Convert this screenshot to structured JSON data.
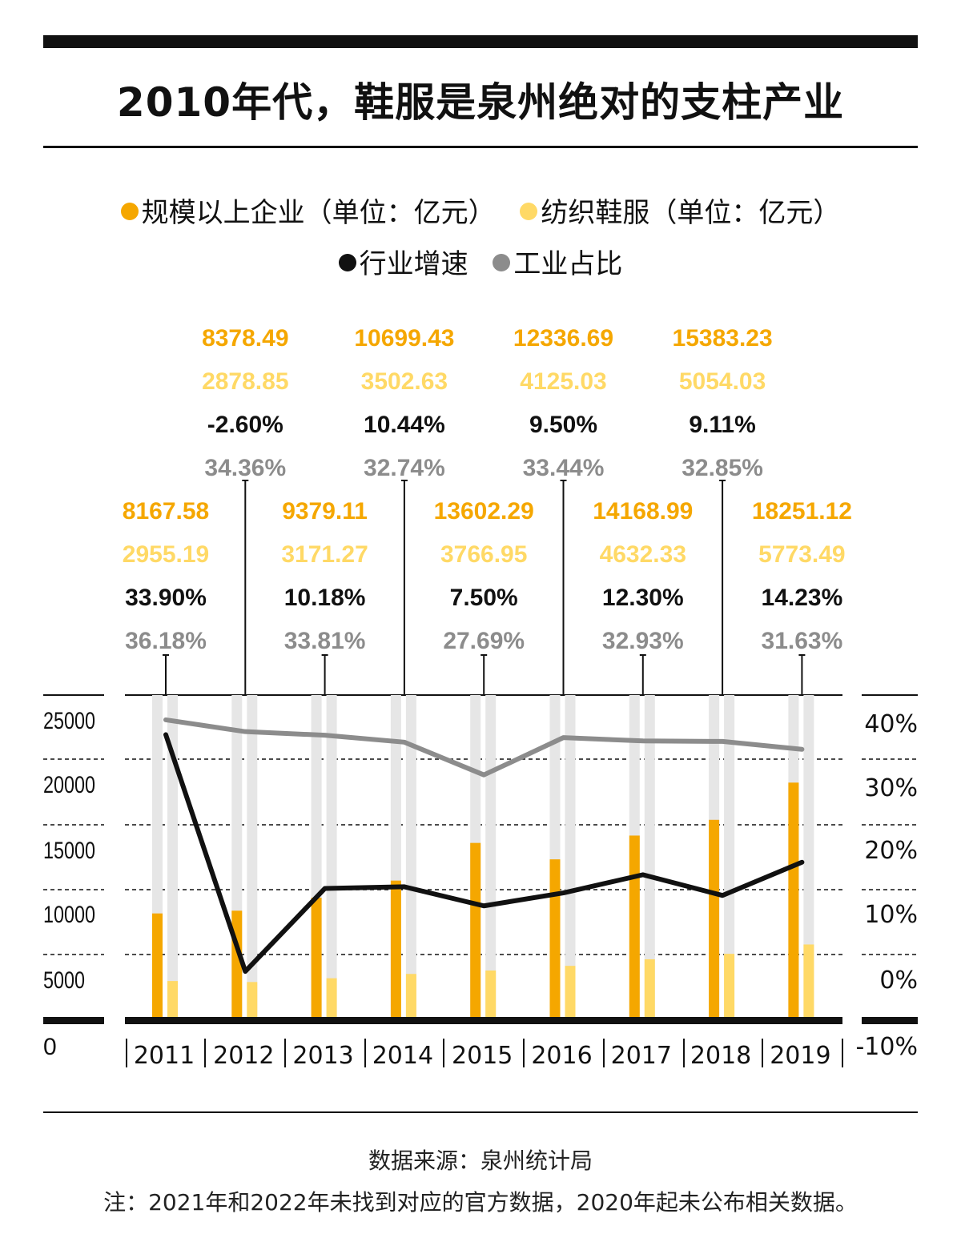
{
  "title": "2010年代，鞋服是泉州绝对的支柱产业",
  "source": "数据来源：泉州统计局",
  "note": "注：2021年和2022年未找到对应的官方数据，2020年起未公布相关数据。",
  "colors": {
    "enterprise": "#f5a700",
    "textile": "#ffd966",
    "growth": "#111111",
    "share": "#8c8c8c",
    "track": "#e6e6e6"
  },
  "legend": [
    {
      "label": "规模以上企业（单位：亿元）",
      "color": "#f5a700"
    },
    {
      "label": "纺织鞋服（单位：亿元）",
      "color": "#ffd966"
    },
    {
      "label": "行业增速",
      "color": "#111111"
    },
    {
      "label": "工业占比",
      "color": "#8c8c8c"
    }
  ],
  "chart_data": {
    "type": "bar",
    "categories": [
      "2011",
      "2012",
      "2013",
      "2014",
      "2015",
      "2016",
      "2017",
      "2018",
      "2019"
    ],
    "series": [
      {
        "name": "规模以上企业（单位：亿元）",
        "type": "bar",
        "axis": "left",
        "values": [
          8167.58,
          8378.49,
          9379.11,
          10699.43,
          13602.29,
          12336.69,
          14168.99,
          15383.23,
          18251.12
        ],
        "labels": [
          "8167.58",
          "8378.49",
          "9379.11",
          "10699.43",
          "13602.29",
          "12336.69",
          "14168.99",
          "15383.23",
          "18251.12"
        ]
      },
      {
        "name": "纺织鞋服（单位：亿元）",
        "type": "bar",
        "axis": "left",
        "values": [
          2955.19,
          2878.85,
          3171.27,
          3502.63,
          3766.95,
          4125.03,
          4632.33,
          5054.03,
          5773.49
        ],
        "labels": [
          "2955.19",
          "2878.85",
          "3171.27",
          "3502.63",
          "3766.95",
          "4125.03",
          "4632.33",
          "5054.03",
          "5773.49"
        ]
      },
      {
        "name": "行业增速",
        "type": "line",
        "axis": "right",
        "values": [
          33.9,
          -2.6,
          10.18,
          10.44,
          7.5,
          9.5,
          12.3,
          9.11,
          14.23
        ],
        "labels": [
          "33.90%",
          "-2.60%",
          "10.18%",
          "10.44%",
          "7.50%",
          "9.50%",
          "12.30%",
          "9.11%",
          "14.23%"
        ]
      },
      {
        "name": "工业占比",
        "type": "line",
        "axis": "right",
        "values": [
          36.18,
          34.36,
          33.81,
          32.74,
          27.69,
          33.44,
          32.93,
          32.85,
          31.63
        ],
        "labels": [
          "36.18%",
          "34.36%",
          "33.81%",
          "32.74%",
          "27.69%",
          "33.44%",
          "32.93%",
          "32.85%",
          "31.63%"
        ]
      }
    ],
    "y_left": {
      "ticks": [
        "0",
        "5000",
        "10000",
        "15000",
        "20000",
        "25000"
      ],
      "ylim": [
        0,
        25000
      ]
    },
    "y_right": {
      "ticks": [
        "-10%",
        "0%",
        "10%",
        "20%",
        "30%",
        "40%"
      ],
      "ylim": [
        -10,
        40
      ]
    },
    "grid": "dashed horizontal",
    "legend_position": "top"
  }
}
